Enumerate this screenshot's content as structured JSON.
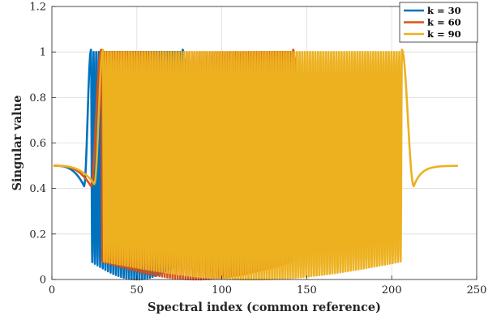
{
  "chart_data": {
    "type": "line",
    "title": "",
    "xlabel": "Spectral index (common reference)",
    "ylabel": "Singular value",
    "xlim": [
      0,
      250
    ],
    "ylim": [
      0,
      1.2
    ],
    "xticks": [
      "0",
      "50",
      "100",
      "150",
      "200",
      "250"
    ],
    "yticks": [
      "0",
      "0.2",
      "0.4",
      "0.6",
      "0.8",
      "1",
      "1.2"
    ],
    "grid": true,
    "legend_position": "top-right",
    "series": [
      {
        "name": "k = 30",
        "color": "#0072BD",
        "x_range": [
          1,
          100
        ],
        "baseline": 0.5,
        "left_dip": {
          "x": 19,
          "y": 0.41
        },
        "right_dip": {
          "x": 83,
          "y": 0.41
        },
        "peaks": [
          [
            23,
            1.01
          ],
          [
            77,
            1.01
          ]
        ],
        "oscillation_x": [
          25,
          80
        ],
        "oscillation_range": [
          0,
          1
        ]
      },
      {
        "name": "k = 60",
        "color": "#D95319",
        "x_range": [
          1,
          170
        ],
        "baseline": 0.5,
        "left_dip": {
          "x": 23,
          "y": 0.41
        },
        "right_dip": {
          "x": 148,
          "y": 0.41
        },
        "peaks": [
          [
            29,
            1.01
          ],
          [
            142,
            1.01
          ]
        ],
        "oscillation_x": [
          28,
          143
        ],
        "oscillation_range": [
          0,
          1
        ]
      },
      {
        "name": "k = 90",
        "color": "#EDB120",
        "x_range": [
          1,
          239
        ],
        "baseline": 0.5,
        "left_dip": {
          "x": 25,
          "y": 0.42
        },
        "right_dip": {
          "x": 213,
          "y": 0.41
        },
        "peaks": [
          [
            30,
            1.01
          ],
          [
            206,
            1.01
          ]
        ],
        "oscillation_x": [
          29,
          205
        ],
        "oscillation_range": [
          0,
          1
        ]
      }
    ]
  }
}
